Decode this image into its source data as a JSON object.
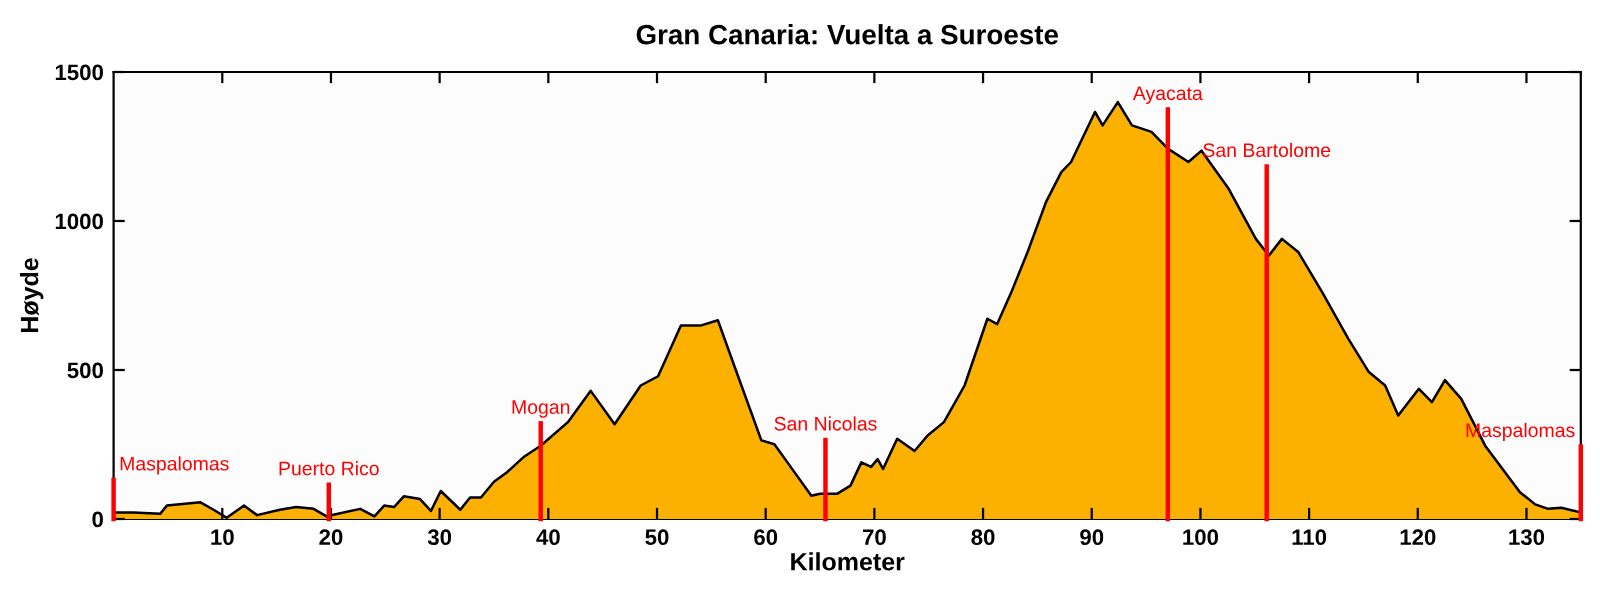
{
  "chart_data": {
    "type": "area",
    "title": "Gran Canaria: Vuelta a Suroeste",
    "xlabel": "Kilometer",
    "ylabel": "Høyde",
    "series": [
      {
        "color": "#fcb000",
        "x": [
          0,
          1.8,
          4.3,
          4.9,
          8,
          9.2,
          10.4,
          12,
          13.2,
          15.3,
          16.8,
          18.4,
          19.6,
          22.7,
          24,
          24.9,
          25.8,
          26.7,
          28.2,
          29.2,
          30.1,
          31.9,
          32.8,
          33.8,
          35,
          36.2,
          37.8,
          39.3,
          41.8,
          43.9,
          46.1,
          48.5,
          50.1,
          52.2,
          54,
          55.6,
          57.1,
          59.6,
          60.8,
          62,
          64.2,
          65,
          66.6,
          67.8,
          68.8,
          69.7,
          70.3,
          70.8,
          72.1,
          73.7,
          74.9,
          76.4,
          78.3,
          80.4,
          81.3,
          82.6,
          84.1,
          85.8,
          87.2,
          88.1,
          90.3,
          91,
          92.4,
          93.7,
          95.5,
          97,
          98.9,
          100.1,
          102.6,
          105.1,
          106.3,
          107.5,
          109,
          111.2,
          113.6,
          115.5,
          117,
          118.2,
          120.1,
          121.3,
          122.5,
          124,
          126.2,
          127.8,
          129.4,
          130.8,
          132,
          133.2,
          135
        ],
        "values": [
          22,
          22,
          18,
          45,
          56,
          31,
          4,
          45,
          13,
          31,
          40,
          34,
          9,
          34,
          9,
          45,
          40,
          76,
          67,
          27,
          94,
          31,
          72,
          72,
          125,
          157,
          210,
          246,
          325,
          430,
          318,
          448,
          479,
          649,
          649,
          667,
          515,
          264,
          251,
          190,
          78,
          85,
          85,
          112,
          190,
          175,
          201,
          168,
          269,
          228,
          280,
          325,
          448,
          672,
          654,
          761,
          896,
          1064,
          1164,
          1198,
          1366,
          1321,
          1399,
          1321,
          1299,
          1243,
          1198,
          1236,
          1108,
          940,
          884,
          940,
          896,
          761,
          605,
          493,
          448,
          347,
          437,
          392,
          466,
          403,
          246,
          168,
          90,
          49,
          34,
          38,
          22
        ]
      }
    ],
    "ref_lines": [
      {
        "axis": "x",
        "value": 0,
        "label": "Maspalomas",
        "color": "#ff0000"
      },
      {
        "axis": "x",
        "value": 19.8,
        "label": "Puerto Rico",
        "color": "#ff0000"
      },
      {
        "axis": "x",
        "value": 39.3,
        "label": "Mogan",
        "color": "#ff0000"
      },
      {
        "axis": "x",
        "value": 65.5,
        "label": "San Nicolas",
        "color": "#ff0000"
      },
      {
        "axis": "x",
        "value": 97,
        "label": "Ayacata",
        "color": "#ff0000"
      },
      {
        "axis": "x",
        "value": 106.1,
        "label": "San Bartolome",
        "color": "#ff0000"
      },
      {
        "axis": "x",
        "value": 135,
        "label": "Maspalomas",
        "color": "#ff0000"
      }
    ],
    "xlim": [
      0,
      135
    ],
    "xticks": [
      10,
      20,
      30,
      40,
      50,
      60,
      70,
      80,
      90,
      100,
      110,
      120,
      130
    ],
    "ylim": [
      0,
      1500
    ],
    "yticks": [
      0,
      500,
      1000,
      1500
    ],
    "grid": false,
    "legend": false
  }
}
